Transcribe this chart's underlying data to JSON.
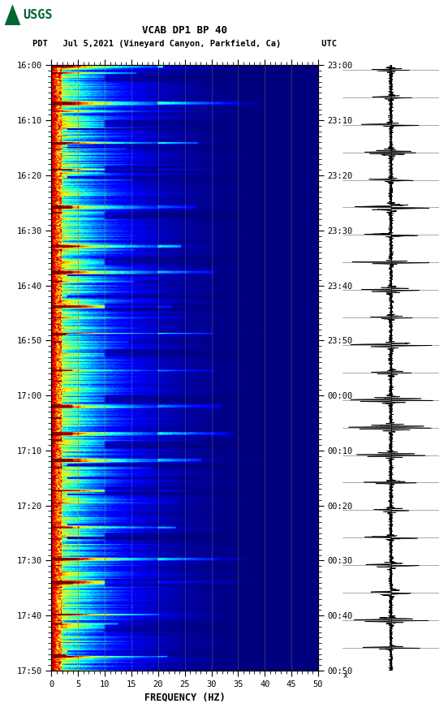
{
  "title_line1": "VCAB DP1 BP 40",
  "title_line2": "PDT   Jul 5,2021 (Vineyard Canyon, Parkfield, Ca)        UTC",
  "xlabel": "FREQUENCY (HZ)",
  "freq_min": 0,
  "freq_max": 50,
  "pdt_ticks": [
    "16:00",
    "16:10",
    "16:20",
    "16:30",
    "16:40",
    "16:50",
    "17:00",
    "17:10",
    "17:20",
    "17:30",
    "17:40",
    "17:50"
  ],
  "utc_ticks": [
    "23:00",
    "23:10",
    "23:20",
    "23:30",
    "23:40",
    "23:50",
    "00:00",
    "00:10",
    "00:20",
    "00:30",
    "00:40",
    "00:50"
  ],
  "freq_ticks": [
    0,
    5,
    10,
    15,
    20,
    25,
    30,
    35,
    40,
    45,
    50
  ],
  "vertical_lines_freq": [
    5,
    10,
    15,
    20,
    25,
    30,
    35,
    40,
    45
  ],
  "background_color": "#ffffff",
  "spectrogram_cmap": "jet",
  "usgs_logo_color": "#006633",
  "font_family": "monospace",
  "n_time": 660,
  "n_freq": 250
}
